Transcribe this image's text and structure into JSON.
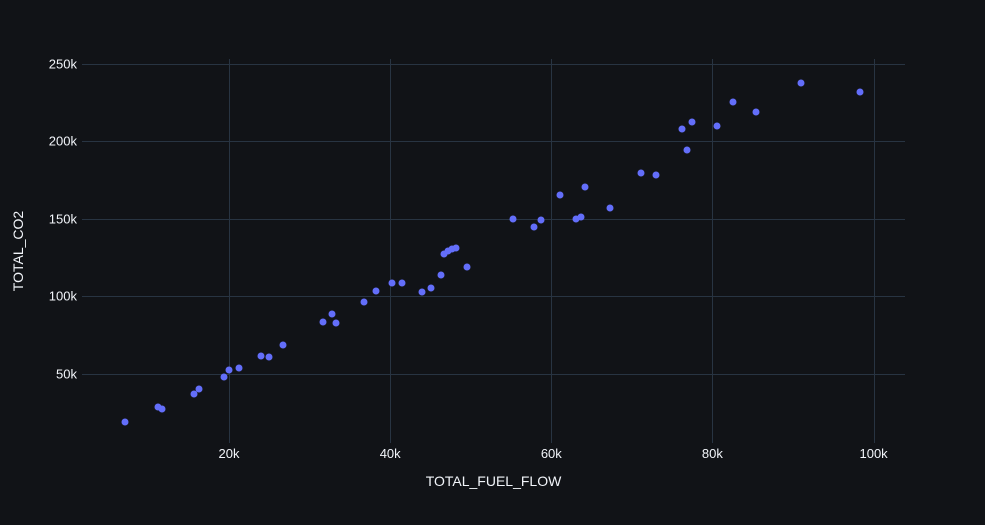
{
  "chart_data": {
    "type": "scatter",
    "title": "",
    "xlabel": "TOTAL_FUEL_FLOW",
    "ylabel": "TOTAL_CO2",
    "legend": false,
    "grid": true,
    "x_ticks": {
      "values": [
        20000,
        40000,
        60000,
        80000,
        100000
      ],
      "labels": [
        "20k",
        "40k",
        "60k",
        "80k",
        "100k"
      ]
    },
    "y_ticks": {
      "values": [
        50000,
        100000,
        150000,
        200000,
        250000
      ],
      "labels": [
        "50k",
        "100k",
        "150k",
        "200k",
        "250k"
      ]
    },
    "xlim": [
      1750,
      103900
    ],
    "ylim": [
      5200,
      252900
    ],
    "marker_color": "#636efa",
    "grid_color": "#283442",
    "text_color": "#f2f5fa",
    "background_color": "#111317",
    "points": [
      [
        7100,
        19100
      ],
      [
        11200,
        28600
      ],
      [
        11700,
        27100
      ],
      [
        15700,
        36800
      ],
      [
        16300,
        40200
      ],
      [
        19400,
        47700
      ],
      [
        20000,
        52600
      ],
      [
        21200,
        53300
      ],
      [
        24000,
        61500
      ],
      [
        24900,
        61000
      ],
      [
        26700,
        68400
      ],
      [
        31700,
        83400
      ],
      [
        32800,
        88300
      ],
      [
        33300,
        82900
      ],
      [
        36700,
        96500
      ],
      [
        38200,
        103600
      ],
      [
        40200,
        108700
      ],
      [
        41400,
        108700
      ],
      [
        44000,
        102900
      ],
      [
        45000,
        105300
      ],
      [
        46300,
        113500
      ],
      [
        46700,
        126900
      ],
      [
        47200,
        128800
      ],
      [
        47700,
        130100
      ],
      [
        48200,
        131000
      ],
      [
        49500,
        118800
      ],
      [
        55200,
        149700
      ],
      [
        57900,
        144400
      ],
      [
        58700,
        149100
      ],
      [
        61100,
        165200
      ],
      [
        63000,
        149500
      ],
      [
        63700,
        151200
      ],
      [
        64200,
        170500
      ],
      [
        67300,
        156600
      ],
      [
        71100,
        179700
      ],
      [
        73000,
        178000
      ],
      [
        76200,
        207600
      ],
      [
        76800,
        194200
      ],
      [
        77500,
        212100
      ],
      [
        80600,
        209900
      ],
      [
        82600,
        225300
      ],
      [
        85400,
        218500
      ],
      [
        91000,
        237600
      ],
      [
        98300,
        231400
      ]
    ]
  }
}
